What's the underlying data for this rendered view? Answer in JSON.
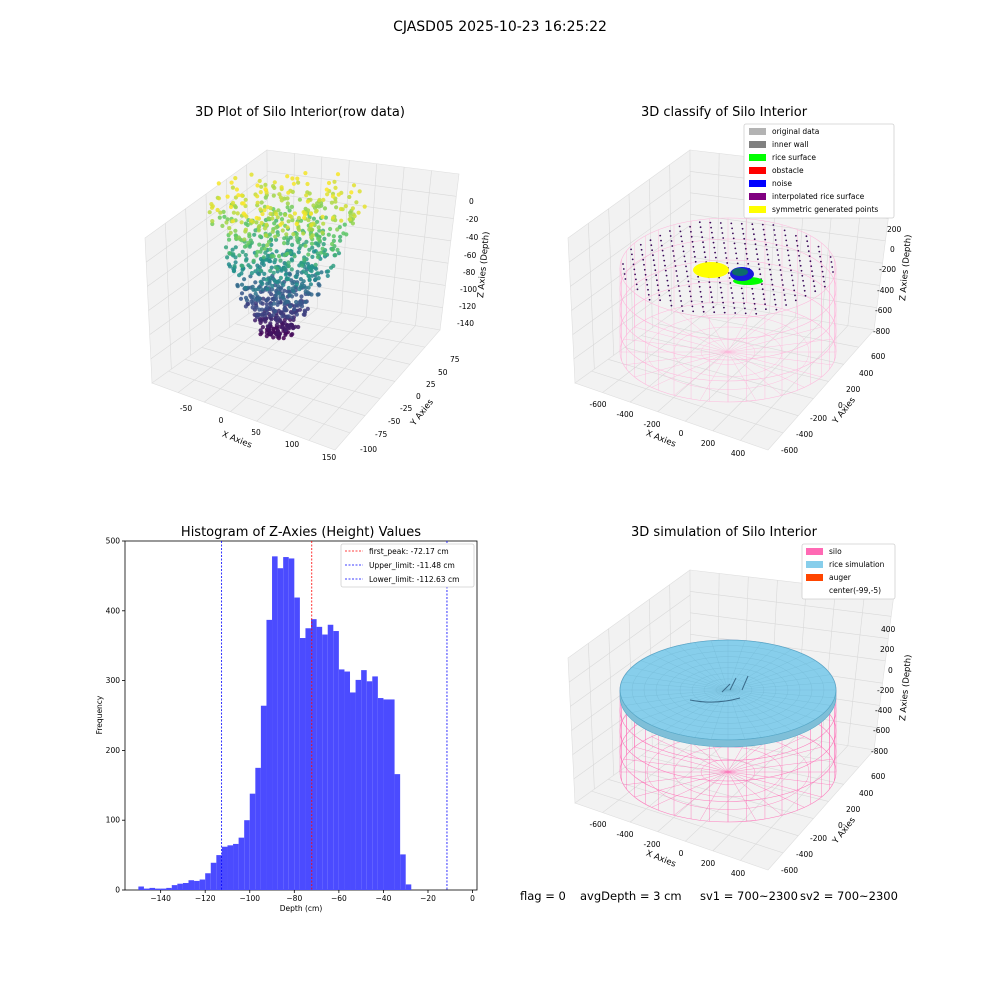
{
  "suptitle": "CJASD05 2025-10-23 16:25:22",
  "panels": {
    "raw": {
      "title": "3D Plot of Silo Interior(row data)",
      "xlabel": "X Axies",
      "ylabel": "Y Axies",
      "zlabel": "Z Axies (Depth)",
      "xticks": [
        "-50",
        "0",
        "50",
        "100",
        "150"
      ],
      "yticks": [
        "75",
        "50",
        "25",
        "0",
        "-25",
        "-50",
        "-75",
        "-100"
      ],
      "zticks": [
        "0",
        "-20",
        "-40",
        "-60",
        "-80",
        "-100",
        "-120",
        "-140"
      ]
    },
    "classify": {
      "title": "3D classify of Silo Interior",
      "xlabel": "X Axies",
      "ylabel": "Y Axies",
      "zlabel": "Z Axies (Depth)",
      "xticks": [
        "-600",
        "-400",
        "-200",
        "0",
        "200",
        "400"
      ],
      "yticks": [
        "600",
        "400",
        "200",
        "0",
        "-200",
        "-400",
        "-600"
      ],
      "zticks": [
        "200",
        "0",
        "-200",
        "-400",
        "-600",
        "-800"
      ],
      "legend": [
        {
          "label": "original data",
          "color": "#b3b3b3"
        },
        {
          "label": "inner wall",
          "color": "#808080"
        },
        {
          "label": "rice surface",
          "color": "#00ff00"
        },
        {
          "label": "obstacle",
          "color": "#ff0000"
        },
        {
          "label": "noise",
          "color": "#0000ff"
        },
        {
          "label": "interpolated rice surface",
          "color": "#800080"
        },
        {
          "label": "symmetric generated points",
          "color": "#ffff00"
        }
      ]
    },
    "simulation": {
      "title": "3D simulation of Silo Interior",
      "xlabel": "X Axies",
      "ylabel": "Y Axies",
      "zlabel": "Z Axies (Depth)",
      "xticks": [
        "-600",
        "-400",
        "-200",
        "0",
        "200",
        "400"
      ],
      "yticks": [
        "600",
        "400",
        "200",
        "0",
        "-200",
        "-400",
        "-600"
      ],
      "zticks": [
        "400",
        "200",
        "0",
        "-200",
        "-400",
        "-600",
        "-800"
      ],
      "legend": [
        {
          "label": "silo",
          "color": "#ff69b4"
        },
        {
          "label": "rice simulation",
          "color": "#87ceeb"
        },
        {
          "label": "auger",
          "color": "#ff4500"
        },
        {
          "label": "center(-99,-5)",
          "color": ""
        }
      ]
    }
  },
  "chart_data": {
    "type": "bar",
    "title": "Histogram of Z-Axies (Height) Values",
    "xlabel": "Depth (cm)",
    "ylabel": "Frequency",
    "xlim": [
      -156,
      2
    ],
    "ylim": [
      0,
      500
    ],
    "xticks": [
      -140,
      -120,
      -100,
      -80,
      -60,
      -40,
      -20,
      0
    ],
    "yticks": [
      0,
      100,
      200,
      300,
      400,
      500
    ],
    "bar_color": "#4b4bff",
    "bin_width": 2.5,
    "bin_starts": [
      -150,
      -147.5,
      -145,
      -142.5,
      -140,
      -137.5,
      -135,
      -132.5,
      -130,
      -127.5,
      -125,
      -122.5,
      -120,
      -117.5,
      -115,
      -112.5,
      -110,
      -107.5,
      -105,
      -102.5,
      -100,
      -97.5,
      -95,
      -92.5,
      -90,
      -87.5,
      -85,
      -82.5,
      -80,
      -77.5,
      -75,
      -72.5,
      -70,
      -67.5,
      -65,
      -62.5,
      -60,
      -57.5,
      -55,
      -52.5,
      -50,
      -47.5,
      -45,
      -42.5,
      -40,
      -37.5,
      -35,
      -32.5,
      -30,
      -27.5,
      -25,
      -22.5,
      -20,
      -17.5,
      -15,
      -12.5,
      -10,
      -7.5
    ],
    "values": [
      5,
      2,
      3,
      2,
      2,
      3,
      7,
      9,
      10,
      14,
      13,
      15,
      24,
      39,
      50,
      62,
      64,
      66,
      75,
      100,
      138,
      175,
      264,
      387,
      478,
      461,
      477,
      475,
      419,
      361,
      375,
      388,
      377,
      366,
      380,
      371,
      316,
      313,
      283,
      301,
      315,
      299,
      306,
      275,
      273,
      273,
      166,
      51,
      8,
      0,
      0,
      0,
      0,
      0,
      0,
      0,
      0,
      0
    ],
    "reference_lines": [
      {
        "label": "first_peak: -72.17 cm",
        "value": -72.17,
        "color": "#ff0000"
      },
      {
        "label": "Upper_limit: -11.48 cm",
        "value": -11.48,
        "color": "#0000ff"
      },
      {
        "label": "Lower_limit: -112.63 cm",
        "value": -112.63,
        "color": "#0000ff"
      }
    ],
    "legend_position": "top-right"
  },
  "footer": {
    "flag": "flag = 0",
    "avg_depth": "avgDepth = 3 cm",
    "sv1": "sv1 = 700~2300",
    "sv2": "sv2 = 700~2300"
  }
}
